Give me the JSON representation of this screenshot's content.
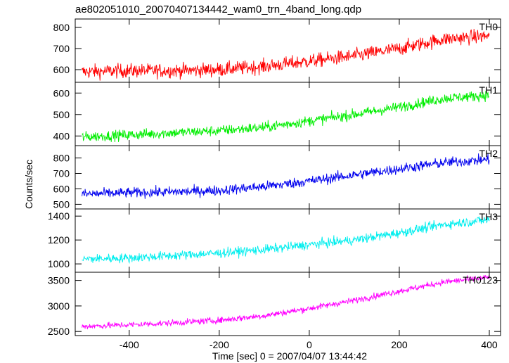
{
  "chart_data": {
    "type": "line",
    "title": "ae802051010_20070407134442_wam0_trn_4band_long.qdp",
    "xlabel": "Time [sec] 0 = 2007/04/07 13:44:42",
    "ylabel": "Counts/sec",
    "xlim": [
      -520,
      425
    ],
    "xticks": [
      -400,
      -200,
      0,
      200,
      400
    ],
    "x_range": [
      -505,
      400
    ],
    "grid": false,
    "panels": [
      {
        "name": "TH0",
        "color": "#ff0000",
        "ylim": [
          540,
          840
        ],
        "yticks": [
          600,
          700,
          800
        ],
        "x": [
          -505,
          -400,
          -300,
          -200,
          -100,
          0,
          100,
          200,
          300,
          400
        ],
        "y": [
          590,
          595,
          595,
          600,
          615,
          640,
          665,
          700,
          745,
          760
        ],
        "noise": 30
      },
      {
        "name": "TH1",
        "color": "#00ee00",
        "ylim": [
          355,
          650
        ],
        "yticks": [
          400,
          500,
          600
        ],
        "x": [
          -505,
          -400,
          -300,
          -200,
          -100,
          0,
          100,
          200,
          300,
          400
        ],
        "y": [
          395,
          405,
          415,
          425,
          440,
          470,
          500,
          535,
          575,
          590
        ],
        "noise": 22
      },
      {
        "name": "TH2",
        "color": "#0000ee",
        "ylim": [
          470,
          880
        ],
        "yticks": [
          500,
          600,
          700,
          800
        ],
        "x": [
          -505,
          -400,
          -300,
          -200,
          -100,
          0,
          100,
          200,
          300,
          400
        ],
        "y": [
          565,
          575,
          580,
          590,
          615,
          650,
          690,
          730,
          770,
          790
        ],
        "noise": 30
      },
      {
        "name": "TH3",
        "color": "#00eeee",
        "ylim": [
          930,
          1460
        ],
        "yticks": [
          1000,
          1200,
          1400
        ],
        "x": [
          -505,
          -400,
          -300,
          -200,
          -100,
          0,
          100,
          200,
          300,
          400
        ],
        "y": [
          1040,
          1050,
          1070,
          1090,
          1120,
          1160,
          1200,
          1260,
          1330,
          1370
        ],
        "noise": 35
      },
      {
        "name": "TH0123",
        "color": "#ff00ff",
        "ylim": [
          2420,
          3660
        ],
        "yticks": [
          2500,
          3000,
          3500
        ],
        "x": [
          -505,
          -400,
          -300,
          -200,
          -100,
          0,
          100,
          200,
          300,
          400
        ],
        "y": [
          2600,
          2630,
          2670,
          2720,
          2810,
          2950,
          3110,
          3290,
          3470,
          3560
        ],
        "noise": 55
      }
    ]
  }
}
